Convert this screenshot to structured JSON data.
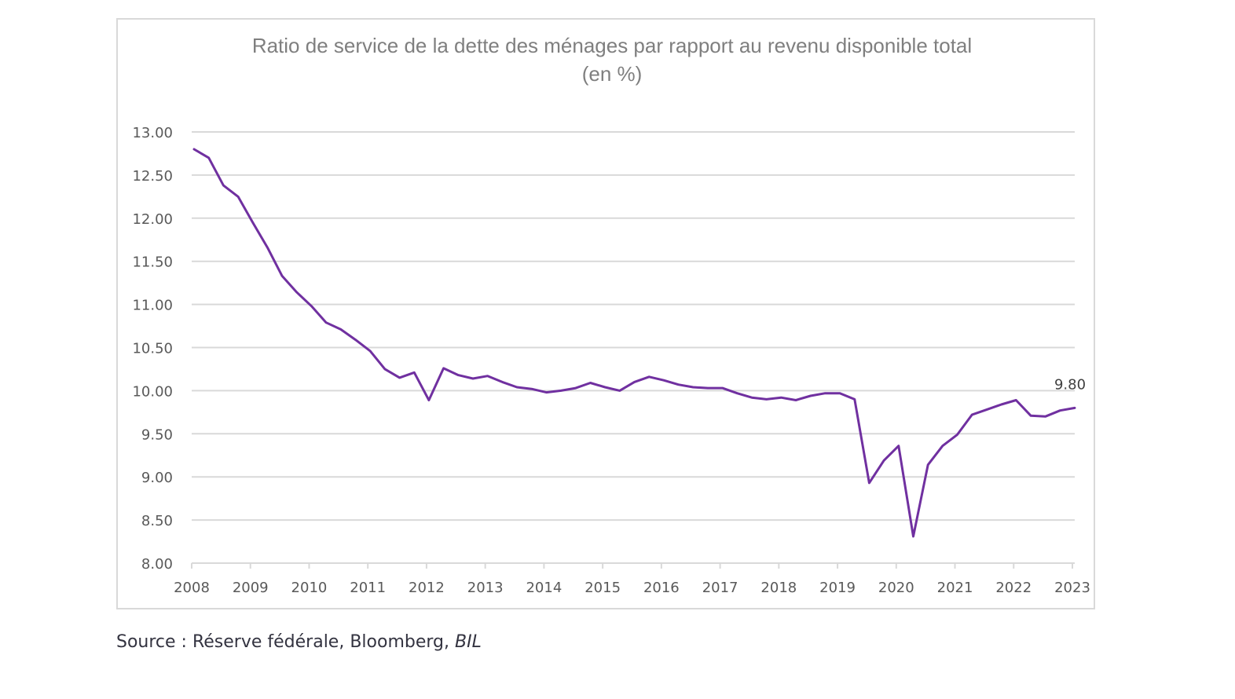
{
  "chart_data": {
    "type": "line",
    "title": "Ratio de service de la dette des ménages par rapport au revenu disponible total",
    "subtitle": "(en %)",
    "xlabel": "",
    "ylabel": "",
    "ylim": [
      8.0,
      13.0
    ],
    "yticks": [
      "13.00",
      "12.50",
      "12.00",
      "11.50",
      "11.00",
      "10.50",
      "10.00",
      "9.50",
      "9.00",
      "8.50",
      "8.00"
    ],
    "ytick_values": [
      13.0,
      12.5,
      12.0,
      11.5,
      11.0,
      10.5,
      10.0,
      9.5,
      9.0,
      8.5,
      8.0
    ],
    "xticks": [
      "2008",
      "2009",
      "2010",
      "2011",
      "2012",
      "2013",
      "2014",
      "2015",
      "2016",
      "2017",
      "2018",
      "2019",
      "2020",
      "2021",
      "2022",
      "2023"
    ],
    "xlim": [
      2008.0,
      2023.0
    ],
    "grid": "horizontal",
    "legend": "none",
    "line_color": "#7030A0",
    "frequency": "quarterly",
    "x": [
      "2008Q1",
      "2008Q2",
      "2008Q3",
      "2008Q4",
      "2009Q1",
      "2009Q2",
      "2009Q3",
      "2009Q4",
      "2010Q1",
      "2010Q2",
      "2010Q3",
      "2010Q4",
      "2011Q1",
      "2011Q2",
      "2011Q3",
      "2011Q4",
      "2012Q1",
      "2012Q2",
      "2012Q3",
      "2012Q4",
      "2013Q1",
      "2013Q2",
      "2013Q3",
      "2013Q4",
      "2014Q1",
      "2014Q2",
      "2014Q3",
      "2014Q4",
      "2015Q1",
      "2015Q2",
      "2015Q3",
      "2015Q4",
      "2016Q1",
      "2016Q2",
      "2016Q3",
      "2016Q4",
      "2017Q1",
      "2017Q2",
      "2017Q3",
      "2017Q4",
      "2018Q1",
      "2018Q2",
      "2018Q3",
      "2018Q4",
      "2019Q1",
      "2019Q2",
      "2019Q3",
      "2019Q4",
      "2020Q1",
      "2020Q2",
      "2020Q3",
      "2020Q4",
      "2021Q1",
      "2021Q2",
      "2021Q3",
      "2021Q4",
      "2022Q1",
      "2022Q2",
      "2022Q3",
      "2022Q4",
      "2023Q1"
    ],
    "series": [
      {
        "name": "Ratio de service de la dette des ménages",
        "values": [
          12.8,
          12.7,
          12.38,
          12.25,
          11.95,
          11.66,
          11.33,
          11.14,
          10.98,
          10.79,
          10.71,
          10.59,
          10.46,
          10.25,
          10.15,
          10.21,
          9.89,
          10.26,
          10.18,
          10.14,
          10.17,
          10.1,
          10.04,
          10.02,
          9.98,
          10.0,
          10.03,
          10.09,
          10.04,
          10.0,
          10.1,
          10.16,
          10.12,
          10.07,
          10.04,
          10.03,
          10.03,
          9.97,
          9.92,
          9.9,
          9.92,
          9.89,
          9.94,
          9.97,
          9.97,
          9.9,
          8.93,
          9.19,
          9.36,
          8.31,
          9.14,
          9.36,
          9.49,
          9.72,
          9.78,
          9.84,
          9.89,
          9.71,
          9.7,
          9.77,
          9.8
        ]
      }
    ],
    "annotations": [
      {
        "text": "9.80",
        "target": "last-point"
      }
    ]
  },
  "source": {
    "prefix": "Source : Réserve fédérale, Bloomberg, ",
    "emphasis": "BIL"
  }
}
